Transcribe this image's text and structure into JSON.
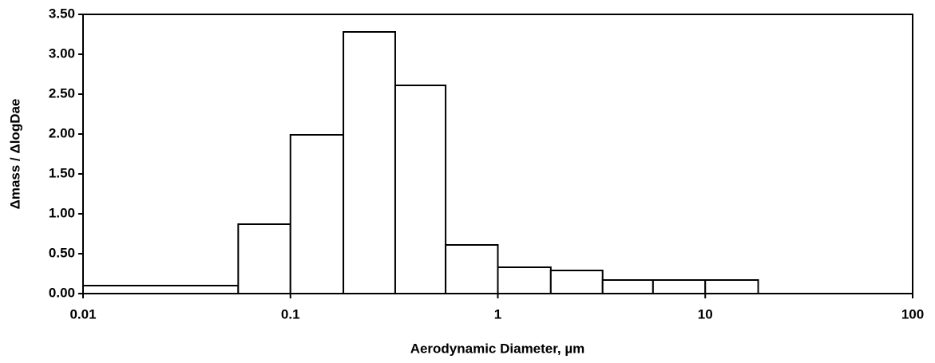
{
  "chart_data": {
    "type": "histogram",
    "x_label": "Aerodynamic Diameter, µm",
    "y_label": "Δmass / ΔlogDae",
    "bins": [
      0.01,
      0.056,
      0.1,
      0.18,
      0.32,
      0.56,
      1.0,
      1.8,
      3.2,
      5.6,
      10,
      18
    ],
    "values": [
      0.1,
      0.87,
      1.99,
      3.28,
      2.61,
      0.61,
      0.33,
      0.29,
      0.17,
      0.17,
      0.17
    ],
    "color": "#ffffff",
    "xscale": "log",
    "xlim": [
      0.01,
      100
    ],
    "xticks": [
      0.01,
      0.1,
      1,
      10,
      100
    ],
    "ylim": [
      0,
      3.5
    ],
    "yticks": [
      {
        "value": 0,
        "label": "0.00"
      },
      {
        "value": 0.5,
        "label": "0.50"
      },
      {
        "value": 1,
        "label": "1.00"
      },
      {
        "value": 1.5,
        "label": "1.50"
      },
      {
        "value": 2,
        "label": "2.00"
      },
      {
        "value": 2.5,
        "label": "2.50"
      },
      {
        "value": 3,
        "label": "3.00"
      },
      {
        "value": 3.5,
        "label": "3.50"
      }
    ],
    "grid": false
  }
}
